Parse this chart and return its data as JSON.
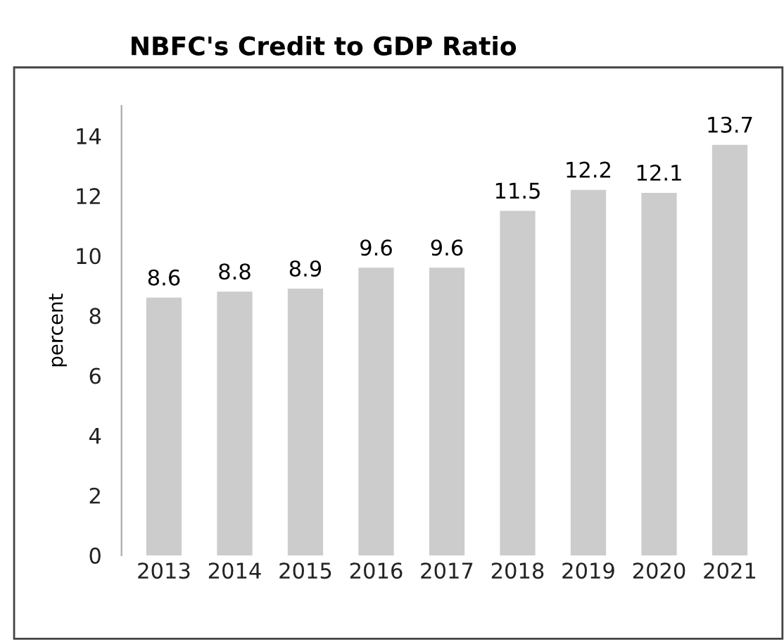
{
  "chart_data": {
    "type": "bar",
    "title": "NBFC's Credit to GDP Ratio",
    "ylabel": "percent",
    "categories": [
      "2013",
      "2014",
      "2015",
      "2016",
      "2017",
      "2018",
      "2019",
      "2020",
      "2021"
    ],
    "values": [
      8.6,
      8.8,
      8.9,
      9.6,
      9.6,
      11.5,
      12.2,
      12.1,
      13.7
    ],
    "color": "#cccccc",
    "ylim": [
      0,
      15
    ],
    "yticks": [
      0,
      2,
      4,
      6,
      8,
      10,
      12,
      14
    ],
    "grid": false,
    "data_labels": true
  }
}
